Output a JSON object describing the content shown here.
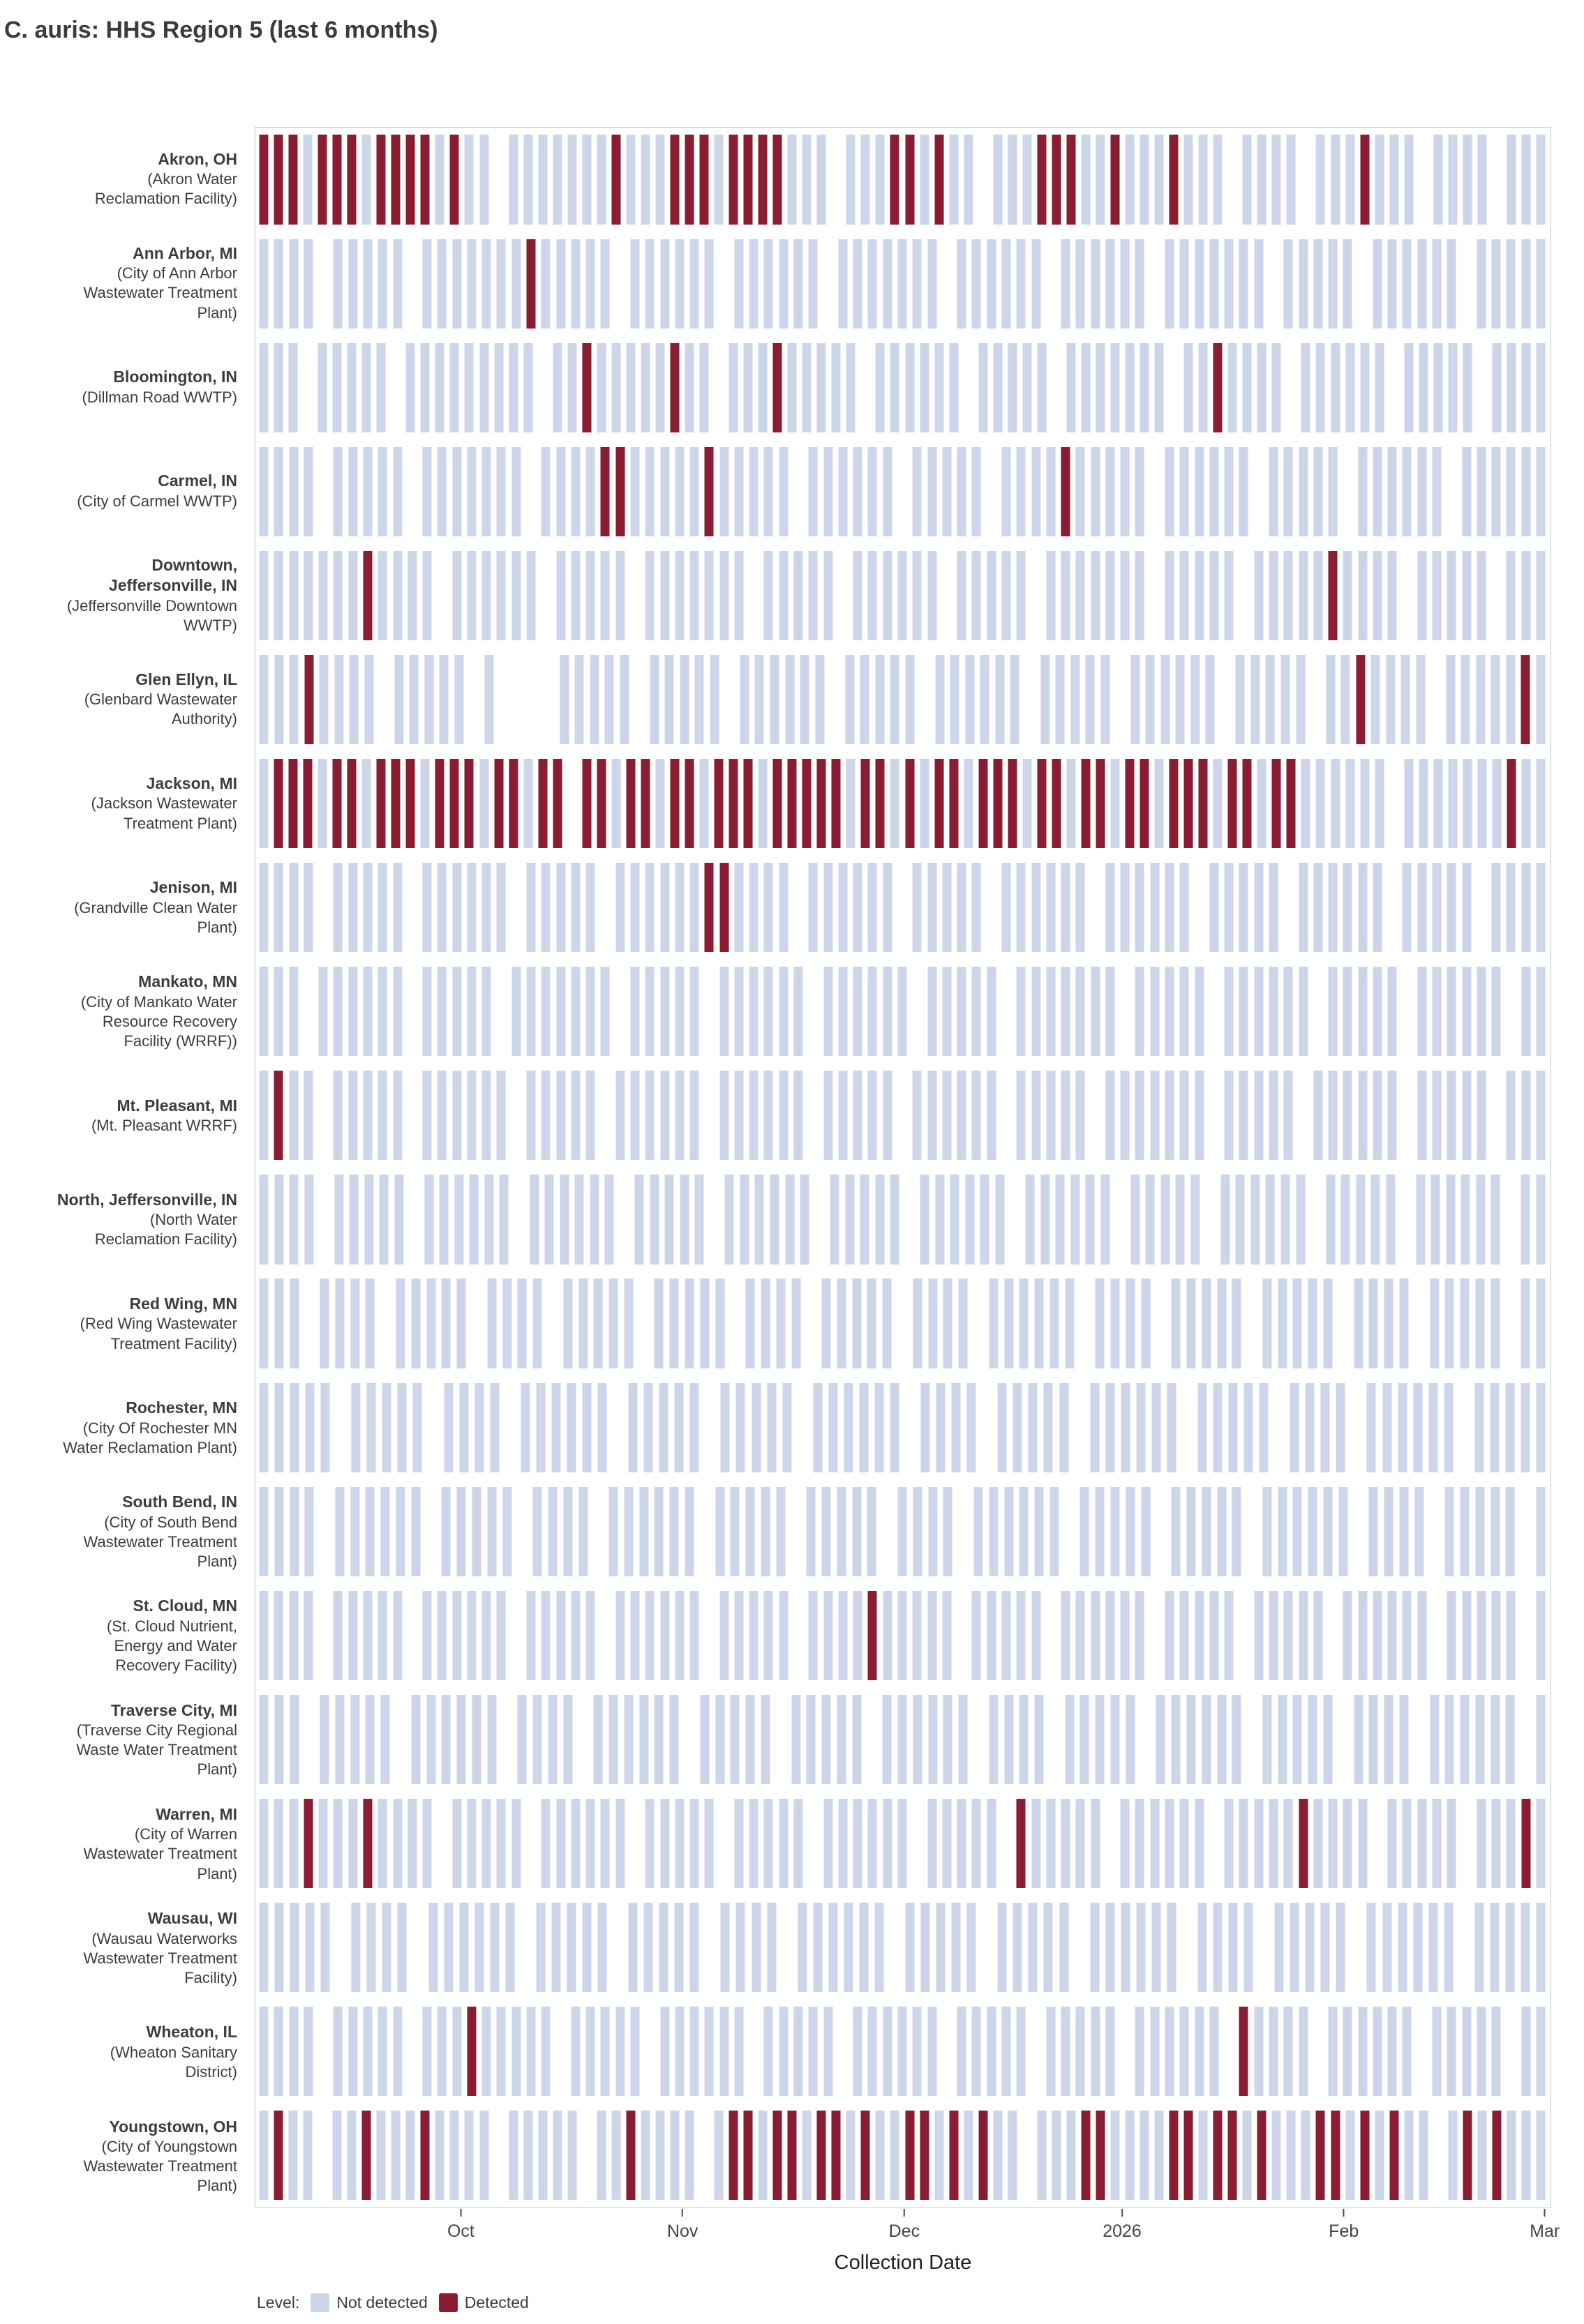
{
  "chart_data": {
    "type": "heatmap",
    "title": "C. auris: HHS Region 5 (last 6 months)",
    "xlabel": "Collection Date",
    "x_axis": {
      "ticks": [
        {
          "label": "Oct",
          "pos": 0.159
        },
        {
          "label": "Nov",
          "pos": 0.33
        },
        {
          "label": "Dec",
          "pos": 0.501
        },
        {
          "label": "2026",
          "pos": 0.669
        },
        {
          "label": "Feb",
          "pos": 0.84
        },
        {
          "label": "Mar",
          "pos": 0.995
        }
      ]
    },
    "colors": {
      "not_detected": "#ccd5e9",
      "detected": "#8a1c33"
    },
    "legend": {
      "label": "Level:",
      "items": [
        {
          "label": "Not detected",
          "key": "N"
        },
        {
          "label": "Detected",
          "key": "D"
        }
      ]
    },
    "encoding": {
      "N": "sample collected - not detected",
      "D": "sample collected - detected",
      ".": "no sample"
    },
    "rows": [
      {
        "name_lines": [
          "Akron, OH"
        ],
        "facility_lines": [
          "(Akron Water",
          "Reclamation Facility)"
        ],
        "pattern": "DDDNDDDNDDDDNDNN.NNNNNNNDNNNDDDNDDDDNNN.NNNDDNDNN.NNNDDDNNDNNNDNNN.NNNN.NNNDNNN.NNNN.NNN"
      },
      {
        "name_lines": [
          "Ann Arbor, MI"
        ],
        "facility_lines": [
          "(City of Ann Arbor",
          "Wastewater Treatment",
          "Plant)"
        ],
        "pattern": "NNNN.NNNNN.NNNNNNNDNNNNN.NNNNNN.NNNNNN.NNNNNNN.NNNNNN.NNNNNN.NNNNNNN.NNNNN.NNNNNN.NNNNN"
      },
      {
        "name_lines": [
          "Bloomington, IN"
        ],
        "facility_lines": [
          "(Dillman Road WWTP)"
        ],
        "pattern": "NNN.NNNNN.NNNNNNNNN.NNDNNNNNDNN.NNNDNNNNN.NNNNNN.NNNNN.NNNNNNN.NNDNNNN.NNNNNN.NNNNN.NNNN"
      },
      {
        "name_lines": [
          "Carmel, IN"
        ],
        "facility_lines": [
          "(City of Carmel WWTP)"
        ],
        "pattern": "NNNN.NNNNN.NNNNNNN.NNNNDDNNNNNDNNNNN.NNNNNN.NNNNN.NNNNDNNNNN.NNNNNN.NNNNN.NNNNNN.NNNNNN"
      },
      {
        "name_lines": [
          "Downtown,",
          "Jeffersonville, IN"
        ],
        "facility_lines": [
          "(Jeffersonville Downtown",
          "WWTP)"
        ],
        "pattern": "NNNNNNNDNNNN.NNNNNN.NNNNN.NNNNNNN.NNNNN.NNNNNN.NNNNN.NNNNNNN.NNNNN.NNNNNDNNNN.NNNNN.NNN"
      },
      {
        "name_lines": [
          "Glen Ellyn, IL"
        ],
        "facility_lines": [
          "(Glenbard Wastewater",
          "Authority)"
        ],
        "pattern": "NNNDNNNN.NNNNN.N....NNNNN.NNNNN.NNNNNN.NNNNN.NNNNNN.NNNNN.NNNNNN.NNNNN.NNDNNNN.NNNNNDN"
      },
      {
        "name_lines": [
          "Jackson, MI"
        ],
        "facility_lines": [
          "(Jackson Wastewater",
          "Treatment Plant)"
        ],
        "pattern": "NDDDNDDNDDDNDDDNDDNDD.DDNDDNDDNDDDNDDDDDNDDNDNDDNDDDNDDNDDNDDNDDDNDDNDDNNNNNN.NNNNNNNDNN"
      },
      {
        "name_lines": [
          "Jenison, MI"
        ],
        "facility_lines": [
          "(Grandville Clean Water",
          "Plant)"
        ],
        "pattern": "NNNN.NNNNN.NNNNNN.NNNNN.NNNNNNDDNNNN.NNNNNN.NNNNN.NNNNNN.NNNNNN.NNNNN.NNNNNN.NNNNN.NNNN"
      },
      {
        "name_lines": [
          "Mankato, MN"
        ],
        "facility_lines": [
          "(City of Mankato Water",
          "Resource Recovery",
          "Facility (WRRF))"
        ],
        "pattern": "NNN.NNNNNN.NNNNN.NNNNNNN.NNNNN.NNNNNN.NNNNNN.NNNNN.NNNNNNN.NNNNN.NNNNNN.NNNNN.NNNNNN.NN"
      },
      {
        "name_lines": [
          "Mt. Pleasant, MI"
        ],
        "facility_lines": [
          "(Mt. Pleasant WRRF)"
        ],
        "pattern": "NDNN.NNNNN.NNNNNN.NNNNN.NNNNNN.NNNNNN.NNNNN.NNNNNN.NNNNN.NNNNNNN.NNNNN.NNNNNN.NNNNN.NNN"
      },
      {
        "name_lines": [
          "North, Jeffersonville, IN"
        ],
        "facility_lines": [
          "(North Water",
          "Reclamation Facility)"
        ],
        "pattern": "NNNN.NNNNN.NNNNNN.NNNNNN.NNNNN.NNNNNN.NNNNN.NNNNNN.NNNNNN.NNNNN.NNNNNN.NNNNN.NNNNNN.NN"
      },
      {
        "name_lines": [
          "Red Wing, MN"
        ],
        "facility_lines": [
          "(Red Wing Wastewater",
          "Treatment Facility)"
        ],
        "pattern": "NNN.NNNN.NNNNN.NNNN.NNNNN.NNNNN.NNNN.NNNNN.NNNN.NNNNNN.NNNN.NNNNN.NNNNN.NNNN.NNNNN.NN"
      },
      {
        "name_lines": [
          "Rochester, MN"
        ],
        "facility_lines": [
          "(City Of Rochester MN",
          "Water Reclamation Plant)"
        ],
        "pattern": "NNNNN.NNNNN.NNNN.NNNNNN.NNNNN.NNNNN.NNNNNN.NNNN.NNNNN.NNNNNN.NNNNN.NNNN.NNNNNN.NNNNN"
      },
      {
        "name_lines": [
          "South Bend, IN"
        ],
        "facility_lines": [
          "(City of South Bend",
          "Wastewater Treatment",
          "Plant)"
        ],
        "pattern": "NNNN.NNNNNN.NNNNN.NNNN.NNNNNN.NNNNN.NNNNN.NNNN.NNNNNN.NNNNN.NNNNN.NNNNNN.NNNN.NNNNN.N"
      },
      {
        "name_lines": [
          "St. Cloud, MN"
        ],
        "facility_lines": [
          "(St. Cloud Nutrient,",
          "Energy and Water",
          "Recovery Facility)"
        ],
        "pattern": "NNNN.NNNNN.NNNNNN.NNNNN.NNNNNN.NNNNN.NNNNDNNNNN.NNNNN.NNNNNN.NNNNN.NNNNN.NNNNNN.NNNNN.N"
      },
      {
        "name_lines": [
          "Traverse City, MI"
        ],
        "facility_lines": [
          "(Traverse City Regional",
          "Waste Water Treatment",
          "Plant)"
        ],
        "pattern": "NNN.NNNNN.NNNNNN.NNNN.NNNNNN.NNNNN.NNNNN.NNNNNN.NNNN.NNNNN.NNNNNN.NNNNN.NNNN.NNNNNN.N"
      },
      {
        "name_lines": [
          "Warren, MI"
        ],
        "facility_lines": [
          "(City of Warren",
          "Wastewater Treatment",
          "Plant)"
        ],
        "pattern": "NNNDNNNDNNNN.NNNNN.NNNNNN.NNNNN.NNNNN.NNNNNN.NNNNN.DNNNNN.NNNNNN.NNNNNDNNNN.NNNNN.NNNDN"
      },
      {
        "name_lines": [
          "Wausau, WI"
        ],
        "facility_lines": [
          "(Wausau Waterworks",
          "Wastewater Treatment",
          "Facility)"
        ],
        "pattern": "NNNNN.NNNN.NNNNNN.NNNNN.NNNNN.NNNN.NNNNNN.NNNNN.NNNNN.NNNNNN.NNNN.NNNNN.NNNNNN.NNNNN"
      },
      {
        "name_lines": [
          "Wheaton, IL"
        ],
        "facility_lines": [
          "(Wheaton Sanitary",
          "District)"
        ],
        "pattern": "NNNN.NNNNN.NNNDNNNNN.NNNNN.NNNNNN.NNNNN.NNNNNN.NNNNN.NNNNN.NNNNNN.DNNNN.NNNNNN.NNNNN.NN"
      },
      {
        "name_lines": [
          "Youngstown, OH"
        ],
        "facility_lines": [
          "(City of Youngstown",
          "Wastewater Treatment",
          "Plant)"
        ],
        "pattern": "NDNN.NNDNNNDNNNN.NNNNN.NNDNNNN.NDDNDDNDDNDNNDDNDNDNN.NNNDDNNNNDDNDDNDNNNDDNDNDNN.NDNDNNN"
      }
    ]
  }
}
